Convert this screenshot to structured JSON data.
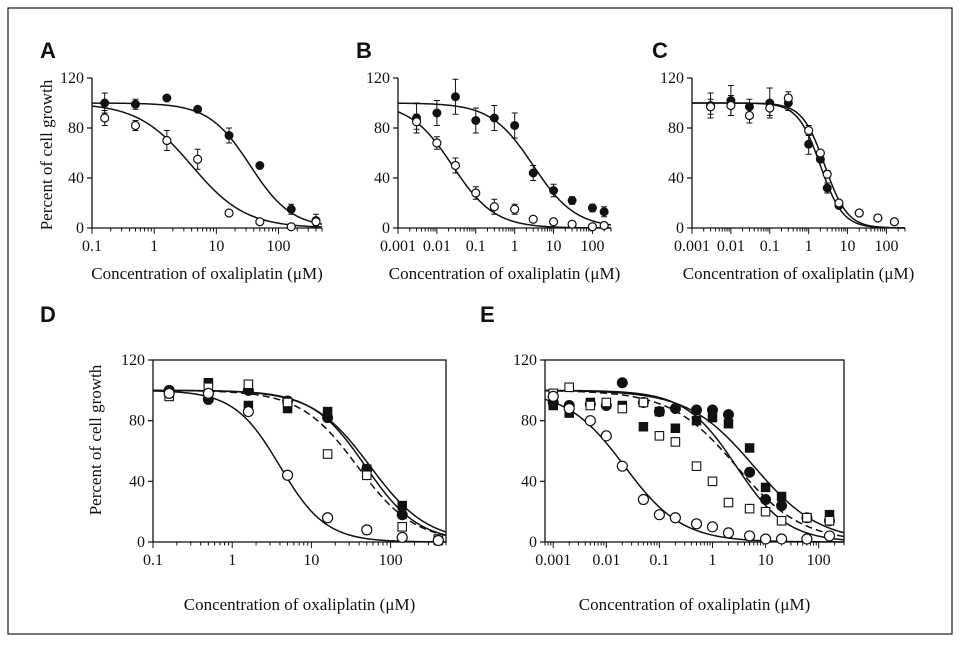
{
  "figure_labels": {
    "ylabel": "Percent of cell growth",
    "xlabel": "Concentration of oxaliplatin (μM)"
  },
  "chart_data": [
    {
      "panel": "A",
      "type": "scatter",
      "xlabel": "Concentration of oxaliplatin (μM)",
      "ylabel": "Percent of cell growth",
      "xscale": "log",
      "xlim": [
        0.1,
        500
      ],
      "ylim": [
        0,
        120
      ],
      "xticks": [
        0.1,
        1,
        10,
        100
      ],
      "xtick_labels": [
        "0.1",
        "1",
        "10",
        "100"
      ],
      "yticks": [
        0,
        40,
        80,
        120
      ],
      "ytick_labels": [
        "0",
        "40",
        "80",
        "120"
      ],
      "frame": false,
      "series": [
        {
          "marker": "filled-circle",
          "x": [
            0.16,
            0.5,
            1.6,
            5,
            16,
            50,
            160,
            400
          ],
          "y": [
            100,
            99,
            104,
            95,
            74,
            50,
            15,
            6
          ],
          "err": [
            8,
            4,
            0,
            0,
            6,
            0,
            4,
            5
          ],
          "fit": {
            "top": 100,
            "ic50": 35,
            "hill": 1.3
          }
        },
        {
          "marker": "open-circle",
          "x": [
            0.16,
            0.5,
            1.6,
            5,
            16,
            50,
            160,
            400
          ],
          "y": [
            88,
            82,
            70,
            55,
            12,
            5,
            1,
            5
          ],
          "err": [
            6,
            4,
            8,
            8,
            2,
            2,
            2,
            3
          ],
          "fit": {
            "top": 100,
            "ic50": 4,
            "hill": 1.0
          }
        }
      ]
    },
    {
      "panel": "B",
      "type": "scatter",
      "xlabel": "Concentration of oxaliplatin (μM)",
      "ylabel": "",
      "xscale": "log",
      "xlim": [
        0.001,
        300
      ],
      "ylim": [
        0,
        120
      ],
      "xticks": [
        0.001,
        0.01,
        0.1,
        1,
        10,
        100
      ],
      "xtick_labels": [
        "0.001",
        "0.01",
        "0.1",
        "1",
        "10",
        "100"
      ],
      "yticks": [
        0,
        40,
        80,
        120
      ],
      "ytick_labels": [
        "0",
        "40",
        "80",
        "120"
      ],
      "frame": false,
      "series": [
        {
          "marker": "filled-circle",
          "x": [
            0.003,
            0.01,
            0.03,
            0.1,
            0.3,
            1,
            3,
            10,
            30,
            100,
            200
          ],
          "y": [
            88,
            92,
            105,
            86,
            88,
            82,
            44,
            30,
            22,
            16,
            13
          ],
          "err": [
            12,
            10,
            14,
            10,
            10,
            10,
            6,
            5,
            3,
            3,
            4
          ],
          "fit": {
            "top": 100,
            "ic50": 3,
            "hill": 0.8
          }
        },
        {
          "marker": "open-circle",
          "x": [
            0.003,
            0.01,
            0.03,
            0.1,
            0.3,
            1,
            3,
            10,
            30,
            100,
            200
          ],
          "y": [
            85,
            68,
            50,
            28,
            17,
            15,
            7,
            5,
            3,
            1,
            2
          ],
          "err": [
            6,
            5,
            6,
            5,
            6,
            4,
            2,
            2,
            1,
            1,
            2
          ],
          "fit": {
            "top": 100,
            "ic50": 0.025,
            "hill": 0.8
          }
        }
      ]
    },
    {
      "panel": "C",
      "type": "scatter",
      "xlabel": "Concentration of oxaliplatin (μM)",
      "ylabel": "",
      "xscale": "log",
      "xlim": [
        0.001,
        300
      ],
      "ylim": [
        0,
        120
      ],
      "xticks": [
        0.001,
        0.01,
        0.1,
        1,
        10,
        100
      ],
      "xtick_labels": [
        "0.001",
        "0.01",
        "0.1",
        "1",
        "10",
        "100"
      ],
      "yticks": [
        0,
        40,
        80,
        120
      ],
      "ytick_labels": [
        "0",
        "40",
        "80",
        "120"
      ],
      "frame": false,
      "series": [
        {
          "marker": "filled-circle",
          "x": [
            0.003,
            0.01,
            0.03,
            0.1,
            0.3,
            1,
            2,
            3,
            6,
            20,
            60,
            160
          ],
          "y": [
            98,
            102,
            97,
            100,
            100,
            67,
            55,
            32,
            18,
            12,
            8,
            5
          ],
          "err": [
            10,
            12,
            6,
            12,
            6,
            8,
            0,
            4,
            0,
            0,
            0,
            0
          ],
          "fit": {
            "top": 100,
            "ic50": 2.0,
            "hill": 1.5
          }
        },
        {
          "marker": "open-circle",
          "x": [
            0.003,
            0.01,
            0.03,
            0.1,
            0.3,
            1,
            2,
            3,
            6,
            20,
            60,
            160
          ],
          "y": [
            97,
            98,
            90,
            96,
            104,
            78,
            60,
            43,
            20,
            12,
            8,
            5
          ],
          "err": [
            6,
            8,
            6,
            6,
            5,
            4,
            0,
            3,
            0,
            0,
            0,
            0
          ],
          "fit": {
            "top": 100,
            "ic50": 2.6,
            "hill": 1.5
          }
        }
      ]
    },
    {
      "panel": "D",
      "type": "scatter",
      "xlabel": "Concentration of oxaliplatin (μM)",
      "ylabel": "Percent of cell growth",
      "xscale": "log",
      "xlim": [
        0.1,
        500
      ],
      "ylim": [
        0,
        120
      ],
      "xticks": [
        0.1,
        1,
        10,
        100
      ],
      "xtick_labels": [
        "0.1",
        "1",
        "10",
        "100"
      ],
      "yticks": [
        0,
        40,
        80,
        120
      ],
      "ytick_labels": [
        "0",
        "40",
        "80",
        "120"
      ],
      "frame": true,
      "series": [
        {
          "marker": "filled-circle",
          "x": [
            0.16,
            0.5,
            1.6,
            5,
            16,
            50,
            140,
            400
          ],
          "y": [
            100,
            94,
            100,
            93,
            82,
            48,
            18,
            1
          ],
          "fit": {
            "top": 100,
            "ic50": 48,
            "hill": 1.3,
            "style": "solid"
          }
        },
        {
          "marker": "filled-square",
          "x": [
            0.16,
            0.5,
            1.6,
            5,
            16,
            50,
            140,
            400
          ],
          "y": [
            99,
            105,
            90,
            88,
            86,
            48,
            24,
            1
          ],
          "fit": {
            "top": 100,
            "ic50": 55,
            "hill": 1.2,
            "style": "solid"
          }
        },
        {
          "marker": "open-square",
          "x": [
            0.16,
            0.5,
            1.6,
            5,
            16,
            50,
            140,
            400
          ],
          "y": [
            96,
            102,
            104,
            92,
            58,
            44,
            10,
            2
          ],
          "fit": {
            "top": 100,
            "ic50": 38,
            "hill": 1.2,
            "style": "dashed"
          }
        },
        {
          "marker": "open-circle",
          "x": [
            0.16,
            0.5,
            1.6,
            5,
            16,
            50,
            140,
            400
          ],
          "y": [
            98,
            98,
            86,
            44,
            16,
            8,
            3,
            1
          ],
          "fit": {
            "top": 100,
            "ic50": 4,
            "hill": 1.5,
            "style": "solid"
          }
        }
      ]
    },
    {
      "panel": "E",
      "type": "scatter",
      "xlabel": "Concentration of oxaliplatin (μM)",
      "ylabel": "",
      "xscale": "log",
      "xlim": [
        0.0007,
        300
      ],
      "ylim": [
        0,
        120
      ],
      "xticks": [
        0.001,
        0.01,
        0.1,
        1,
        10,
        100
      ],
      "xtick_labels": [
        "0.001",
        "0.01",
        "0.1",
        "1",
        "10",
        "100"
      ],
      "yticks": [
        0,
        40,
        80,
        120
      ],
      "ytick_labels": [
        "0",
        "40",
        "80",
        "120"
      ],
      "frame": true,
      "series": [
        {
          "marker": "filled-circle",
          "x": [
            0.001,
            0.002,
            0.005,
            0.01,
            0.02,
            0.05,
            0.1,
            0.2,
            0.5,
            1,
            2,
            5,
            10,
            20,
            60,
            160
          ],
          "y": [
            92,
            90,
            91,
            90,
            105,
            92,
            86,
            88,
            87,
            87,
            84,
            46,
            28,
            24,
            16,
            14
          ],
          "fit": {
            "top": 100,
            "ic50": 2.8,
            "hill": 0.9,
            "style": "solid"
          }
        },
        {
          "marker": "filled-square",
          "x": [
            0.001,
            0.002,
            0.005,
            0.01,
            0.02,
            0.05,
            0.1,
            0.2,
            0.5,
            1,
            2,
            5,
            10,
            20,
            60,
            160
          ],
          "y": [
            90,
            85,
            92,
            91,
            90,
            76,
            86,
            75,
            80,
            82,
            78,
            62,
            36,
            30,
            16,
            18
          ],
          "fit": {
            "top": 100,
            "ic50": 6,
            "hill": 0.7,
            "style": "solid"
          }
        },
        {
          "marker": "open-square",
          "x": [
            0.001,
            0.002,
            0.005,
            0.01,
            0.02,
            0.05,
            0.1,
            0.2,
            0.5,
            1,
            2,
            5,
            10,
            20,
            60,
            160
          ],
          "y": [
            98,
            102,
            90,
            92,
            88,
            92,
            70,
            66,
            50,
            40,
            26,
            22,
            20,
            14,
            16,
            14
          ],
          "fit": {
            "top": 100,
            "ic50": 2.8,
            "hill": 0.7,
            "style": "dashed"
          }
        },
        {
          "marker": "open-circle",
          "x": [
            0.001,
            0.002,
            0.005,
            0.01,
            0.02,
            0.05,
            0.1,
            0.2,
            0.5,
            1,
            2,
            5,
            10,
            20,
            60,
            160
          ],
          "y": [
            96,
            88,
            80,
            70,
            50,
            28,
            18,
            16,
            12,
            10,
            6,
            4,
            2,
            2,
            2,
            4
          ],
          "fit": {
            "top": 100,
            "ic50": 0.022,
            "hill": 0.8,
            "style": "solid"
          }
        }
      ]
    }
  ]
}
